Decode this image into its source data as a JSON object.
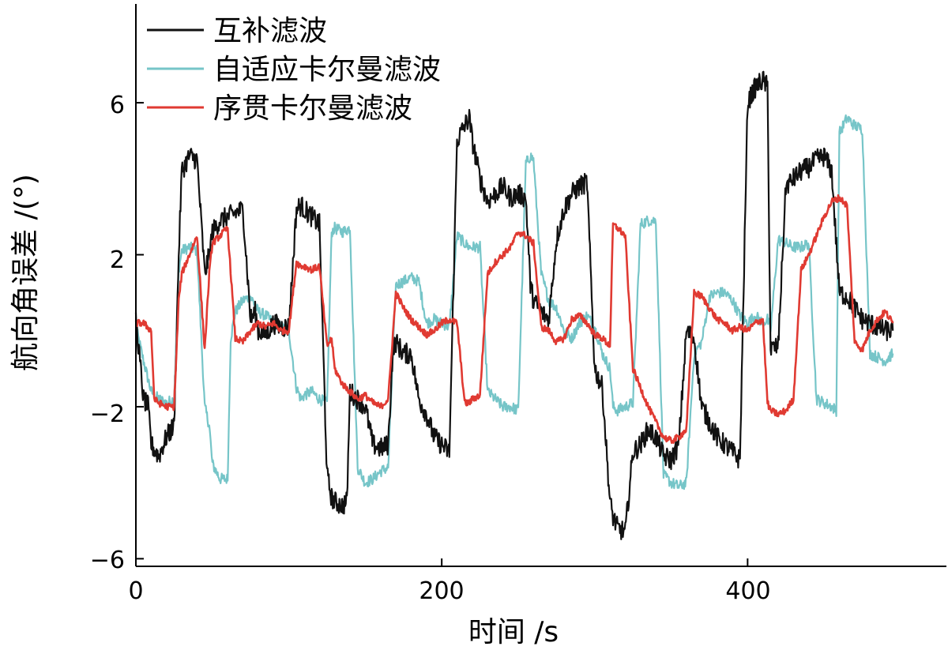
{
  "chart_data": {
    "type": "line",
    "title": "",
    "xlabel": "时间 /s",
    "ylabel": "航向角误差 /(°)",
    "xlim": [
      0,
      530
    ],
    "ylim": [
      -6.2,
      8.6
    ],
    "xticks": [
      0,
      200,
      400
    ],
    "yticks": [
      -6,
      -2,
      2,
      6
    ],
    "tick_labels": {
      "x": [
        "0",
        "200",
        "400"
      ],
      "y": [
        "−6",
        "−2",
        "2",
        "6"
      ]
    },
    "grid": false,
    "legend": "top-left",
    "series": [
      {
        "name": "互补滤波",
        "color": "#111111",
        "noise": 0.55,
        "x": [
          0,
          5,
          8,
          10,
          15,
          20,
          25,
          28,
          30,
          35,
          40,
          45,
          48,
          50,
          55,
          60,
          65,
          70,
          75,
          78,
          80,
          85,
          90,
          95,
          100,
          105,
          108,
          110,
          115,
          120,
          125,
          128,
          130,
          135,
          138,
          140,
          145,
          150,
          155,
          160,
          165,
          168,
          170,
          175,
          180,
          185,
          190,
          195,
          200,
          205,
          210,
          215,
          218,
          220,
          225,
          230,
          235,
          240,
          245,
          250,
          255,
          258,
          260,
          265,
          270,
          275,
          280,
          285,
          290,
          295,
          300,
          305,
          310,
          312,
          315,
          320,
          325,
          330,
          335,
          340,
          345,
          350,
          355,
          360,
          365,
          370,
          375,
          380,
          385,
          390,
          395,
          400,
          405,
          410,
          413,
          415,
          420,
          425,
          430,
          435,
          440,
          445,
          450,
          455,
          460,
          465,
          470,
          475,
          480,
          485,
          490,
          495
        ],
        "y": [
          0.3,
          -1.8,
          -2.0,
          -3.0,
          -3.3,
          -2.8,
          -2.5,
          2.0,
          4.2,
          4.6,
          4.5,
          1.5,
          2.0,
          2.6,
          2.9,
          3.0,
          3.1,
          3.2,
          0.3,
          0.5,
          0.0,
          -0.1,
          0.2,
          0.1,
          0.1,
          3.2,
          3.3,
          3.2,
          3.0,
          2.8,
          -3.8,
          -4.4,
          -4.5,
          -4.6,
          -4.5,
          -1.6,
          -1.8,
          -2.0,
          -3.0,
          -3.1,
          -3.0,
          -0.5,
          -0.3,
          -0.6,
          -0.6,
          -1.8,
          -2.2,
          -2.8,
          -3.0,
          -3.2,
          5.0,
          5.4,
          5.6,
          5.0,
          4.0,
          3.4,
          3.6,
          3.8,
          3.5,
          3.6,
          3.5,
          1.2,
          0.8,
          0.5,
          0.3,
          2.4,
          3.2,
          3.6,
          3.8,
          3.9,
          -1.0,
          -1.5,
          -4.5,
          -4.9,
          -5.2,
          -5.3,
          -3.2,
          -3.0,
          -2.6,
          -2.8,
          -3.3,
          -3.4,
          -3.0,
          0.0,
          -0.2,
          -2.0,
          -2.4,
          -2.8,
          -3.0,
          -3.2,
          -3.4,
          6.0,
          6.4,
          6.6,
          6.4,
          -0.5,
          -0.4,
          3.8,
          4.0,
          4.2,
          4.3,
          4.5,
          4.6,
          4.2,
          1.0,
          0.9,
          0.6,
          0.3,
          0.2,
          0.1,
          0.0,
          0.0
        ]
      },
      {
        "name": "自适应卡尔曼滤波",
        "color": "#76c5c8",
        "noise": 0.3,
        "x": [
          0,
          5,
          10,
          15,
          20,
          25,
          28,
          30,
          35,
          40,
          45,
          48,
          50,
          55,
          60,
          62,
          65,
          70,
          75,
          80,
          85,
          90,
          95,
          100,
          105,
          108,
          110,
          115,
          120,
          125,
          128,
          130,
          135,
          140,
          145,
          150,
          155,
          160,
          165,
          170,
          175,
          180,
          185,
          190,
          195,
          200,
          205,
          210,
          215,
          218,
          220,
          225,
          230,
          235,
          240,
          245,
          250,
          255,
          258,
          260,
          265,
          270,
          275,
          280,
          285,
          290,
          295,
          300,
          305,
          310,
          312,
          315,
          320,
          325,
          330,
          335,
          340,
          345,
          350,
          355,
          360,
          365,
          370,
          375,
          380,
          385,
          390,
          395,
          400,
          405,
          410,
          413,
          415,
          420,
          425,
          430,
          435,
          440,
          445,
          450,
          455,
          458,
          460,
          465,
          470,
          475,
          480,
          485,
          490,
          495
        ],
        "y": [
          0.1,
          -0.8,
          -1.6,
          -1.8,
          -1.9,
          -1.8,
          1.6,
          2.1,
          2.2,
          2.1,
          -2.0,
          -2.5,
          -3.5,
          -3.9,
          -3.9,
          -0.2,
          0.5,
          0.8,
          0.9,
          0.5,
          0.4,
          0.2,
          0.1,
          0.0,
          -1.5,
          -1.8,
          -1.7,
          -1.6,
          -1.8,
          -1.9,
          2.6,
          2.7,
          2.6,
          2.7,
          -3.6,
          -4.0,
          -3.9,
          -3.7,
          -3.6,
          1.2,
          1.3,
          1.4,
          1.3,
          0.2,
          0.3,
          0.2,
          0.1,
          2.5,
          2.3,
          2.2,
          2.2,
          2.2,
          -1.6,
          -1.8,
          -2.0,
          -2.0,
          -2.1,
          4.4,
          4.6,
          4.5,
          1.5,
          0.8,
          0.6,
          0.0,
          -0.2,
          0.2,
          0.4,
          0.1,
          -0.6,
          -1.0,
          -2.0,
          -2.1,
          -2.0,
          -1.9,
          2.8,
          2.9,
          2.9,
          -3.8,
          -4.0,
          -4.1,
          -4.0,
          -0.6,
          -0.3,
          0.9,
          1.0,
          1.0,
          0.8,
          0.4,
          0.2,
          0.4,
          0.2,
          0.3,
          0.0,
          2.4,
          2.3,
          2.2,
          2.2,
          2.3,
          -1.8,
          -1.9,
          -2.0,
          -2.1,
          5.2,
          5.6,
          5.4,
          5.3,
          -0.6,
          -0.7,
          -0.8,
          -0.6
        ]
      },
      {
        "name": "序贯卡尔曼滤波",
        "color": "#e03a32",
        "noise": 0.18,
        "x": [
          0,
          5,
          10,
          12,
          15,
          20,
          25,
          28,
          30,
          35,
          40,
          45,
          48,
          50,
          55,
          60,
          65,
          70,
          75,
          80,
          85,
          90,
          95,
          100,
          105,
          108,
          110,
          115,
          120,
          125,
          128,
          130,
          135,
          140,
          145,
          150,
          155,
          160,
          165,
          170,
          175,
          180,
          185,
          190,
          195,
          200,
          205,
          210,
          215,
          218,
          220,
          225,
          230,
          235,
          240,
          245,
          250,
          255,
          260,
          265,
          270,
          275,
          280,
          285,
          290,
          295,
          300,
          305,
          310,
          312,
          315,
          320,
          325,
          330,
          335,
          340,
          345,
          350,
          355,
          360,
          365,
          370,
          375,
          380,
          385,
          390,
          395,
          400,
          405,
          410,
          413,
          415,
          420,
          425,
          430,
          435,
          440,
          445,
          450,
          455,
          460,
          465,
          470,
          475,
          480,
          485,
          490,
          495
        ],
        "y": [
          0.2,
          0.2,
          0.0,
          -1.8,
          -1.9,
          -2.0,
          -2.0,
          0.8,
          1.5,
          2.0,
          2.5,
          -0.5,
          1.5,
          2.3,
          2.5,
          2.7,
          -0.2,
          -0.3,
          0.0,
          0.2,
          0.1,
          0.2,
          0.0,
          0.0,
          1.8,
          1.7,
          1.7,
          1.6,
          1.7,
          -0.4,
          -0.2,
          -1.0,
          -1.4,
          -1.6,
          -1.8,
          -1.7,
          -1.9,
          -2.0,
          -1.8,
          1.0,
          0.6,
          0.3,
          0.1,
          -0.1,
          0.0,
          0.2,
          0.3,
          0.2,
          -1.9,
          -1.9,
          -1.8,
          -1.7,
          1.5,
          1.8,
          2.0,
          2.2,
          2.6,
          2.5,
          2.3,
          0.1,
          0.0,
          -0.3,
          -0.2,
          0.3,
          0.4,
          0.2,
          -0.1,
          -0.2,
          -0.4,
          2.8,
          2.7,
          2.5,
          -1.0,
          -1.5,
          -2.0,
          -2.4,
          -2.8,
          -2.9,
          -2.8,
          -2.6,
          1.0,
          0.9,
          0.6,
          0.3,
          0.2,
          0.0,
          0.1,
          0.0,
          0.2,
          0.3,
          -1.9,
          -2.1,
          -2.2,
          -2.1,
          -1.8,
          1.6,
          2.0,
          2.5,
          3.0,
          3.4,
          3.5,
          3.3,
          -0.3,
          -0.5,
          0.0,
          0.3,
          0.5,
          0.2
        ]
      }
    ]
  }
}
